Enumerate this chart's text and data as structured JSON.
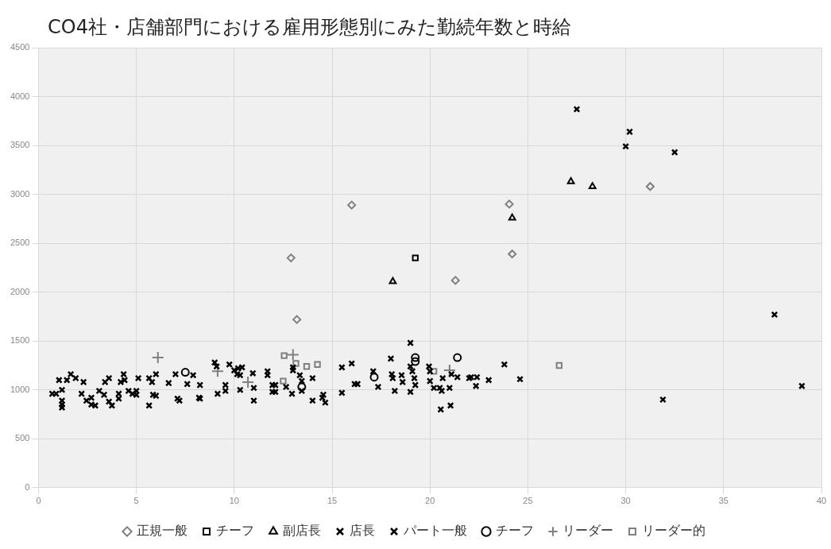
{
  "chart_data": {
    "type": "scatter",
    "title": "CO4社・店舗部門における雇用形態別にみた勤続年数と時給",
    "xlim": [
      0,
      40
    ],
    "xticks": [
      0,
      5,
      10,
      15,
      20,
      25,
      30,
      35,
      40
    ],
    "ylim": [
      0,
      4500
    ],
    "yticks": [
      0,
      500,
      1000,
      1500,
      2000,
      2500,
      3000,
      3500,
      4000,
      4500
    ],
    "grid": true,
    "legend": "bottom",
    "series": [
      {
        "name": "正規一般",
        "color": "#7f7f7f",
        "marker": "diamond",
        "x": [
          12.9,
          13.2,
          16.0,
          21.3,
          24.05,
          24.2,
          31.25
        ],
        "values": [
          2350,
          1720,
          2890,
          2120,
          2900,
          2390,
          3080
        ]
      },
      {
        "name": "チーフ",
        "color": "#000000",
        "marker": "square",
        "x": [
          19.25
        ],
        "values": [
          2350
        ]
      },
      {
        "name": "副店長",
        "color": "#000000",
        "marker": "triangle",
        "x": [
          18.1,
          24.2,
          27.2,
          28.3
        ],
        "values": [
          2110,
          2760,
          3130,
          3080
        ]
      },
      {
        "name": "店長",
        "color": "#000000",
        "marker": "cross",
        "x": [
          27.5,
          30.2,
          30.0,
          32.5
        ],
        "values": [
          3870,
          3640,
          3490,
          3430
        ]
      },
      {
        "name": "パート一般",
        "color": "#000000",
        "marker": "cross",
        "x": [
          0.7,
          0.9,
          1.05,
          1.2,
          1.2,
          1.2,
          1.2,
          1.45,
          1.65,
          1.9,
          2.2,
          2.3,
          2.45,
          2.7,
          2.7,
          2.9,
          3.1,
          3.35,
          3.4,
          3.6,
          3.6,
          3.75,
          4.1,
          4.1,
          4.2,
          4.35,
          4.4,
          4.6,
          4.8,
          5.0,
          5.0,
          5.1,
          5.65,
          5.65,
          5.8,
          5.85,
          6.0,
          6.0,
          6.65,
          7.0,
          7.1,
          7.2,
          7.6,
          7.9,
          8.25,
          8.2,
          8.25,
          9.0,
          9.1,
          9.15,
          9.55,
          9.55,
          9.75,
          10.0,
          10.15,
          10.3,
          10.2,
          10.4,
          10.3,
          10.95,
          11.0,
          11.0,
          11.7,
          11.7,
          11.95,
          11.95,
          12.1,
          12.1,
          12.65,
          12.95,
          13.0,
          13.0,
          13.35,
          13.45,
          13.45,
          14.0,
          14.0,
          14.5,
          14.55,
          14.65,
          15.5,
          15.5,
          16.0,
          16.15,
          16.3,
          17.1,
          17.35,
          18.0,
          18.05,
          18.1,
          18.2,
          18.55,
          18.6,
          19.0,
          19.0,
          19.0,
          19.1,
          19.2,
          19.25,
          19.95,
          20.0,
          20.0,
          20.2,
          20.5,
          20.6,
          20.65,
          20.55,
          21.0,
          21.1,
          21.05,
          21.4,
          22.0,
          22.1,
          22.4,
          22.35,
          23.0,
          23.8,
          24.6,
          31.9,
          37.6,
          39.0
        ],
        "values": [
          960,
          960,
          1100,
          1000,
          890,
          850,
          820,
          1100,
          1160,
          1120,
          960,
          1080,
          890,
          920,
          850,
          840,
          990,
          950,
          1080,
          1120,
          880,
          840,
          960,
          910,
          1080,
          1160,
          1100,
          990,
          960,
          990,
          950,
          1120,
          1120,
          840,
          1080,
          950,
          940,
          1160,
          1070,
          1160,
          910,
          890,
          1060,
          1150,
          1050,
          920,
          910,
          1280,
          1240,
          960,
          1050,
          990,
          1260,
          1200,
          1160,
          1150,
          1220,
          1230,
          1000,
          1170,
          1020,
          890,
          1190,
          1150,
          1050,
          980,
          1050,
          980,
          1030,
          960,
          1230,
          1200,
          1150,
          1090,
          990,
          1120,
          890,
          920,
          950,
          870,
          1230,
          970,
          1270,
          1060,
          1060,
          1190,
          1030,
          1320,
          1160,
          1120,
          990,
          1150,
          1080,
          1480,
          1240,
          980,
          1190,
          1120,
          1050,
          1240,
          1190,
          1090,
          1020,
          1020,
          990,
          1120,
          800,
          1020,
          1160,
          840,
          1130,
          1120,
          1130,
          1130,
          1040,
          1100,
          1260,
          1110,
          900,
          1770,
          1040
        ]
      },
      {
        "name": "チーフ",
        "color": "#000000",
        "marker": "circle",
        "x": [
          7.5,
          13.45,
          17.15,
          19.25,
          19.25,
          21.4
        ],
        "values": [
          1180,
          1030,
          1130,
          1330,
          1290,
          1330
        ]
      },
      {
        "name": "リーダー",
        "color": "#7f7f7f",
        "marker": "plus",
        "x": [
          6.1,
          9.15,
          10.7,
          13.0,
          21.0
        ],
        "values": [
          1330,
          1190,
          1080,
          1360,
          1200
        ]
      },
      {
        "name": "リーダー的",
        "color": "#7f7f7f",
        "marker": "square",
        "x": [
          12.55,
          12.5,
          13.15,
          13.7,
          14.25,
          20.2,
          26.6
        ],
        "values": [
          1350,
          1090,
          1270,
          1240,
          1260,
          1190,
          1250
        ]
      }
    ]
  }
}
